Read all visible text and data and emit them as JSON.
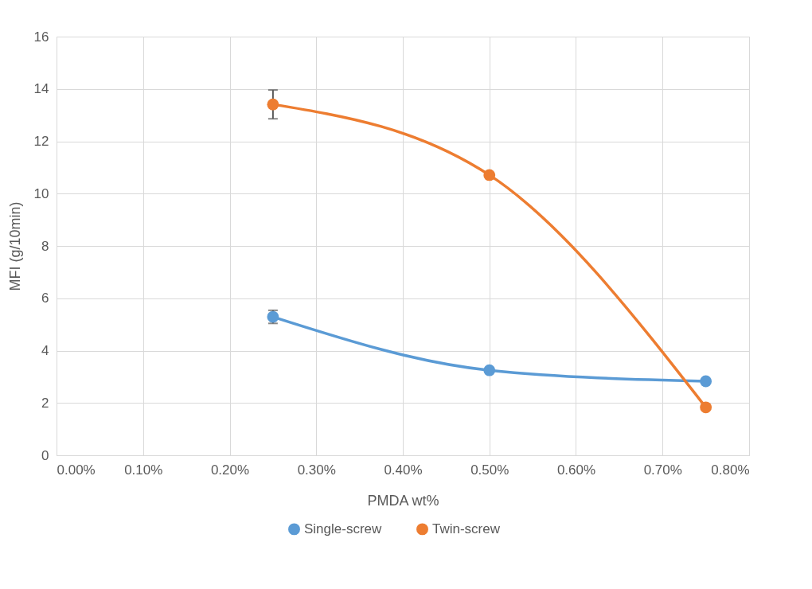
{
  "chart_data": {
    "type": "line",
    "xlabel": "PMDA wt%",
    "ylabel": "MFI (g/10min)",
    "x": [
      0.25,
      0.5,
      0.75
    ],
    "series": [
      {
        "name": "Single-screw",
        "color": "#5b9bd5",
        "values": [
          5.29,
          3.25,
          2.83
        ],
        "errors": [
          0.25,
          null,
          null
        ]
      },
      {
        "name": "Twin-screw",
        "color": "#ed7d31",
        "values": [
          13.41,
          10.71,
          1.83
        ],
        "errors": [
          0.55,
          null,
          null
        ]
      }
    ],
    "xlim": [
      0,
      0.8
    ],
    "xticks": [
      {
        "value": 0,
        "label": "0.00%"
      },
      {
        "value": 0.1,
        "label": "0.10%"
      },
      {
        "value": 0.2,
        "label": "0.20%"
      },
      {
        "value": 0.3,
        "label": "0.30%"
      },
      {
        "value": 0.4,
        "label": "0.40%"
      },
      {
        "value": 0.5,
        "label": "0.50%"
      },
      {
        "value": 0.6,
        "label": "0.60%"
      },
      {
        "value": 0.7,
        "label": "0.70%"
      },
      {
        "value": 0.8,
        "label": "0.80%"
      }
    ],
    "ylim": [
      0,
      16
    ],
    "yticks": [
      0,
      2,
      4,
      6,
      8,
      10,
      12,
      14,
      16
    ],
    "grid": true,
    "legend": "bottom",
    "marker": "circle",
    "line_style": "solid"
  }
}
